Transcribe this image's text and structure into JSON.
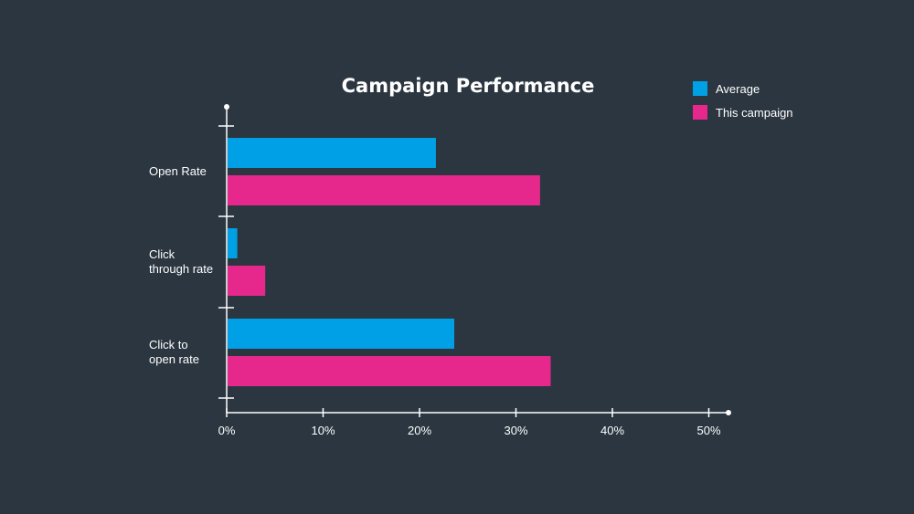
{
  "chart_data": {
    "type": "bar",
    "orientation": "horizontal",
    "title": "Campaign Performance",
    "xlabel": "",
    "ylabel": "",
    "categories": [
      [
        "Open Rate"
      ],
      [
        "Click",
        "through rate"
      ],
      [
        "Click to",
        "open rate"
      ]
    ],
    "series": [
      {
        "name": "Average",
        "color": "#00a0e6",
        "values": [
          21.7,
          1.1,
          23.6
        ]
      },
      {
        "name": "This campaign",
        "color": "#e6288c",
        "values": [
          32.5,
          4.0,
          33.6
        ]
      }
    ],
    "xlim": [
      0,
      52
    ],
    "xticks": [
      0,
      10,
      20,
      30,
      40,
      50
    ],
    "xtick_labels": [
      "0%",
      "10%",
      "20%",
      "30%",
      "40%",
      "50%"
    ],
    "grid": false,
    "legend": "top-right",
    "axis_color": "#ffffff"
  }
}
